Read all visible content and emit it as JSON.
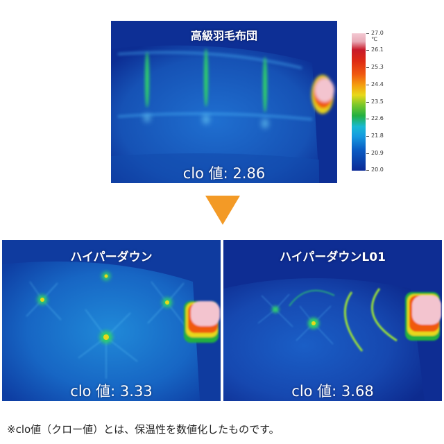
{
  "top_panel": {
    "title": "高級羽毛布団",
    "clo": "clo 値: 2.86"
  },
  "temperature_scale": {
    "unit": "℃",
    "ticks": [
      "27.0",
      "26.1",
      "25.3",
      "24.4",
      "23.5",
      "22.6",
      "21.8",
      "20.9",
      "20.0"
    ]
  },
  "arrow": {
    "color": "#f39a26"
  },
  "bottom_left_panel": {
    "title": "ハイパーダウン",
    "clo": "clo 値: 3.33"
  },
  "bottom_right_panel": {
    "title": "ハイパーダウンL01",
    "clo": "clo 値: 3.68"
  },
  "footnote": "※clo値（クロー値）とは、保温性を数値化したものです。"
}
